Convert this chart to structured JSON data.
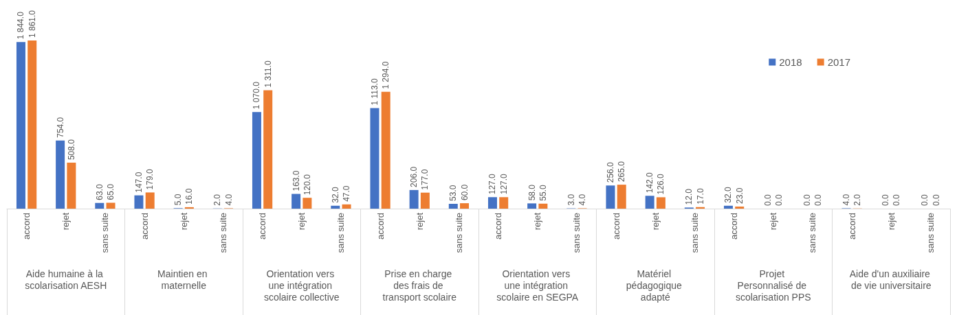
{
  "chart_data": {
    "type": "bar",
    "categories": [
      "accord",
      "rejet",
      "sans suite",
      "accord",
      "rejet",
      "sans suite",
      "accord",
      "rejet",
      "sans suite",
      "accord",
      "rejet",
      "sans suite",
      "accord",
      "rejet",
      "sans suite",
      "accord",
      "rejet",
      "sans suite",
      "accord",
      "rejet",
      "sans suite",
      "accord",
      "rejet",
      "sans suite"
    ],
    "annotations": [
      "Aide humaine à la scolarisation AESH",
      "Maintien en maternelle",
      "Orientation vers une intégration scolaire collective",
      "Prise en charge des frais de transport scolaire",
      "Orientation vers une intégration scolaire en SEGPA",
      "Matériel pédagogique adapté",
      "Projet Personnalisé de scolarisation PPS",
      "Aide d'un auxiliaire de vie universitaire"
    ],
    "series": [
      {
        "name": "2018",
        "color": "#4472c4",
        "values": [
          1844,
          754,
          63,
          147,
          5,
          2,
          1070,
          163,
          32,
          1113,
          206,
          53,
          127,
          58,
          3,
          256,
          142,
          12,
          32,
          0,
          0,
          4,
          0,
          0
        ],
        "value_labels": [
          "1 844.0",
          "754.0",
          "63.0",
          "147.0",
          "5.0",
          "2.0",
          "1 070.0",
          "163.0",
          "32.0",
          "1 113.0",
          "206.0",
          "53.0",
          "127.0",
          "58.0",
          "3.0",
          "256.0",
          "142.0",
          "12.0",
          "32.0",
          "0.0",
          "0.0",
          "4.0",
          "0.0",
          "0.0"
        ]
      },
      {
        "name": "2017",
        "color": "#ed7d31",
        "values": [
          1861,
          508,
          65,
          179,
          16,
          4,
          1311,
          120,
          47,
          1294,
          177,
          60,
          127,
          55,
          4,
          265,
          126,
          17,
          23,
          0,
          0,
          2,
          0,
          0
        ],
        "value_labels": [
          "1 861.0",
          "508.0",
          "65.0",
          "179.0",
          "16.0",
          "4.0",
          "1 311.0",
          "120.0",
          "47.0",
          "1 294.0",
          "177.0",
          "60.0",
          "127.0",
          "55.0",
          "4.0",
          "265.0",
          "126.0",
          "17.0",
          "23.0",
          "0.0",
          "0.0",
          "2.0",
          "0.0",
          "0.0"
        ]
      }
    ],
    "legend": "top right"
  }
}
